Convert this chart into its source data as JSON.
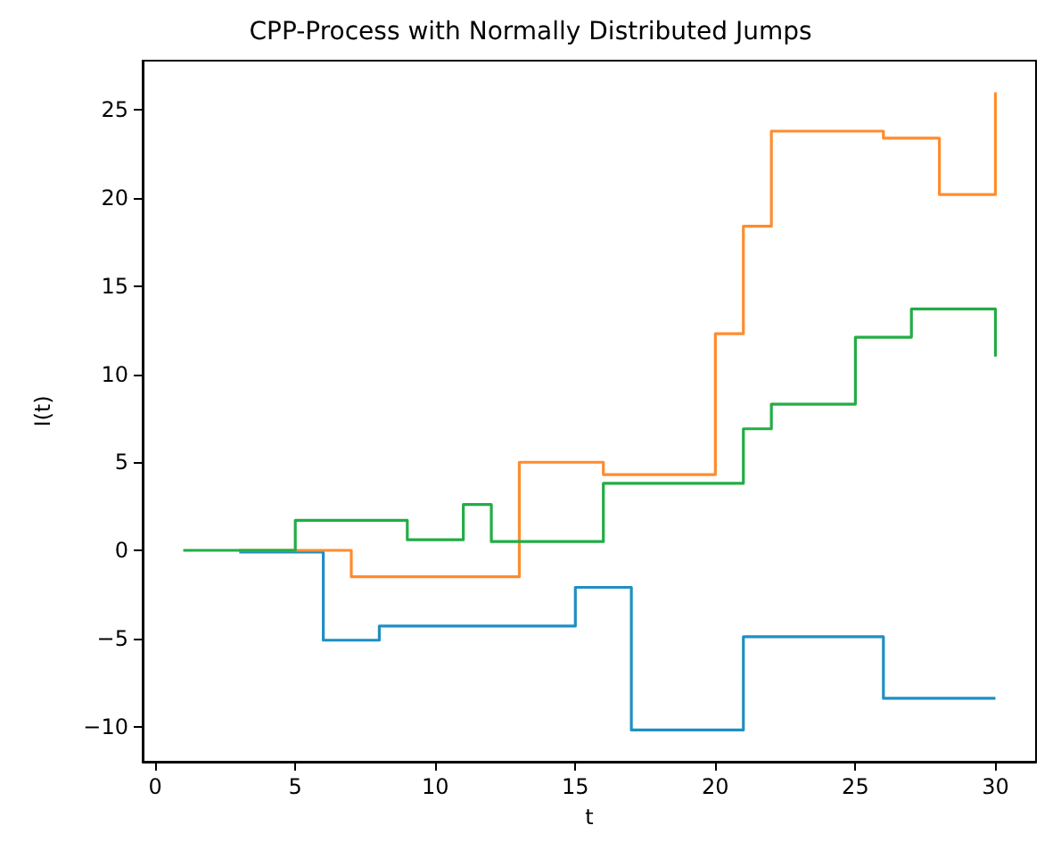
{
  "chart_data": {
    "type": "step",
    "title": "CPP-Process with Normally Distributed Jumps",
    "xlabel": "t",
    "ylabel": "I(t)",
    "xlim": [
      -0.45,
      31.45
    ],
    "ylim": [
      -12,
      27.8
    ],
    "xticks": [
      0,
      5,
      10,
      15,
      20,
      25,
      30
    ],
    "yticks": [
      -10,
      -5,
      0,
      5,
      10,
      15,
      20,
      25
    ],
    "grid": false,
    "marker": "none",
    "line_style": "solid",
    "series": [
      {
        "color": "#1f8fc2",
        "x": [
          3,
          6,
          8,
          15,
          17,
          21,
          26,
          30
        ],
        "values": [
          -0.1,
          -5.1,
          -4.3,
          -2.1,
          -10.2,
          -4.9,
          -8.4,
          -8.4
        ]
      },
      {
        "color": "#ff8c2e",
        "x": [
          3,
          7,
          13,
          16,
          20,
          21,
          22,
          26,
          28,
          30
        ],
        "values": [
          0,
          -1.5,
          5,
          4.3,
          12.3,
          18.4,
          23.8,
          23.4,
          20.2,
          26
        ]
      },
      {
        "color": "#22ad45",
        "x": [
          1,
          5,
          9,
          11,
          12,
          16,
          21,
          22,
          25,
          27,
          30
        ],
        "values": [
          0,
          1.7,
          0.6,
          2.6,
          0.5,
          3.8,
          6.9,
          8.3,
          12.1,
          13.7,
          11
        ]
      }
    ]
  }
}
